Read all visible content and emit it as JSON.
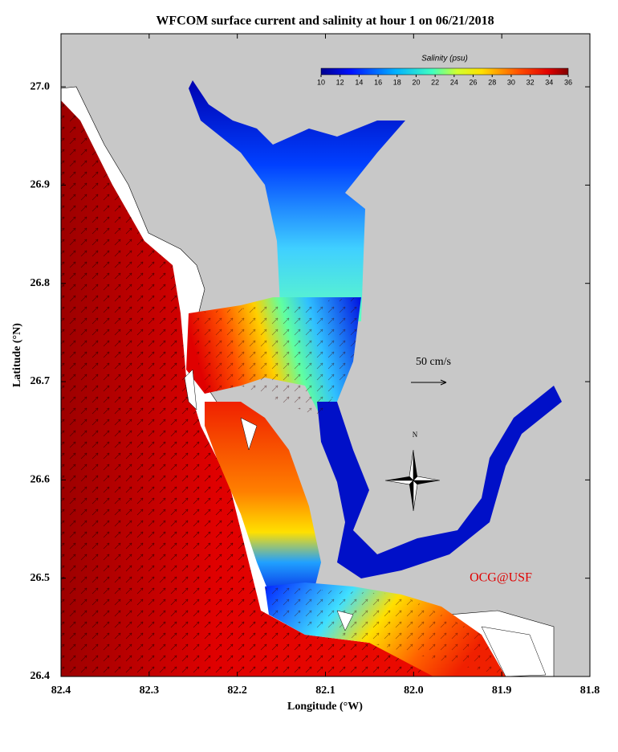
{
  "title": "WFCOM surface current and salinity at hour 1 on 06/21/2018",
  "x_axis": {
    "label": "Longitude (°W)",
    "lim": [
      82.4,
      81.8
    ],
    "ticks": [
      82.4,
      82.3,
      82.2,
      82.1,
      {
        "value": 82,
        "label": "82.0"
      },
      81.9,
      81.8
    ]
  },
  "y_axis": {
    "label": "Latitude (°N)",
    "lim": [
      26.4,
      27.054
    ],
    "ticks": [
      26.4,
      26.5,
      26.6,
      26.7,
      26.8,
      26.9,
      {
        "value": 27,
        "label": "27.0"
      }
    ]
  },
  "colorbar": {
    "title": "Salinity (psu)",
    "lim": [
      10,
      36
    ],
    "ticks": [
      10,
      12,
      14,
      16,
      18,
      20,
      22,
      24,
      26,
      28,
      30,
      32,
      34,
      36
    ]
  },
  "scale_label": "50 cm/s",
  "north_label": "N",
  "credit": "OCG@USF"
}
